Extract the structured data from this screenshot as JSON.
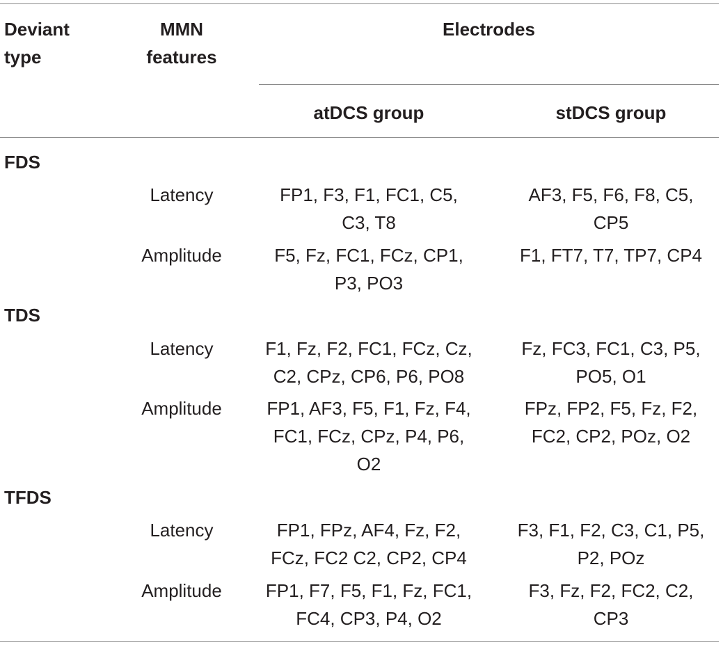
{
  "table": {
    "header": {
      "deviant_type": [
        "Deviant",
        "type"
      ],
      "mmn_features": [
        "MMN",
        "features"
      ],
      "electrodes": "Electrodes",
      "atdcs": "atDCS group",
      "stdcs": "stDCS group"
    },
    "groups": [
      {
        "label": "FDS",
        "rows": [
          {
            "feature": "Latency",
            "atdcs": [
              "FP1, F3, F1, FC1, C5,",
              "C3, T8"
            ],
            "stdcs": [
              "AF3, F5, F6, F8, C5,",
              "CP5"
            ]
          },
          {
            "feature": "Amplitude",
            "atdcs": [
              "F5, Fz, FC1, FCz, CP1,",
              "P3, PO3"
            ],
            "stdcs": [
              "F1, FT7, T7, TP7, CP4"
            ]
          }
        ]
      },
      {
        "label": "TDS",
        "rows": [
          {
            "feature": "Latency",
            "atdcs": [
              "F1, Fz, F2, FC1, FCz, Cz,",
              "C2, CPz, CP6, P6, PO8"
            ],
            "stdcs": [
              "Fz, FC3, FC1, C3, P5,",
              "PO5, O1"
            ]
          },
          {
            "feature": "Amplitude",
            "atdcs": [
              "FP1, AF3, F5, F1, Fz, F4,",
              "FC1, FCz, CPz, P4, P6,",
              "O2"
            ],
            "stdcs": [
              "FPz, FP2, F5, Fz, F2,",
              "FC2, CP2, POz, O2"
            ]
          }
        ]
      },
      {
        "label": "TFDS",
        "rows": [
          {
            "feature": "Latency",
            "atdcs": [
              "FP1, FPz, AF4, Fz, F2,",
              "FCz, FC2 C2, CP2, CP4"
            ],
            "stdcs": [
              "F3, F1, F2, C3, C1, P5,",
              "P2, POz"
            ]
          },
          {
            "feature": "Amplitude",
            "atdcs": [
              "FP1, F7, F5, F1, Fz, FC1,",
              "FC4, CP3, P4, O2"
            ],
            "stdcs": [
              "F3, Fz, F2, FC2, C2,",
              "CP3"
            ]
          }
        ]
      }
    ]
  }
}
